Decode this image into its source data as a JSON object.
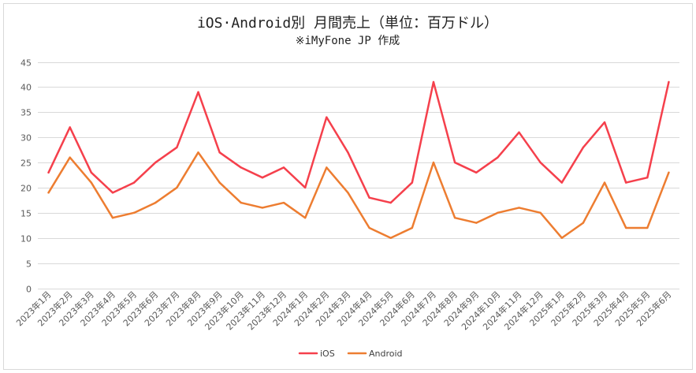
{
  "chart_data": {
    "type": "line",
    "title": "iOS·Android別 月間売上（単位：百万ドル）",
    "subtitle": "※iMyFone JP 作成",
    "xlabel": "",
    "ylabel": "",
    "ylim": [
      0,
      45
    ],
    "yticks": [
      0,
      5,
      10,
      15,
      20,
      25,
      30,
      35,
      40,
      45
    ],
    "grid": true,
    "legend_position": "bottom",
    "categories": [
      "2023年1月",
      "2023年2月",
      "2023年3月",
      "2023年4月",
      "2023年5月",
      "2023年6月",
      "2023年7月",
      "2023年8月",
      "2023年9月",
      "2023年10月",
      "2023年11月",
      "2023年12月",
      "2024年1月",
      "2024年2月",
      "2024年3月",
      "2024年4月",
      "2024年5月",
      "2024年6月",
      "2024年7月",
      "2024年8月",
      "2024年9月",
      "2024年10月",
      "2024年11月",
      "2024年12月",
      "2025年1月",
      "2025年2月",
      "2025年3月",
      "2025年4月",
      "2025年5月",
      "2025年6月"
    ],
    "series": [
      {
        "name": "iOS",
        "color": "#F5404C",
        "values": [
          23,
          32,
          23,
          19,
          21,
          25,
          28,
          39,
          27,
          24,
          22,
          24,
          20,
          34,
          27,
          18,
          17,
          21,
          41,
          25,
          23,
          26,
          31,
          25,
          21,
          28,
          33,
          21,
          22,
          41
        ]
      },
      {
        "name": "Android",
        "color": "#ED7D31",
        "values": [
          19,
          26,
          21,
          14,
          15,
          17,
          20,
          27,
          21,
          17,
          16,
          17,
          14,
          24,
          19,
          12,
          10,
          12,
          25,
          14,
          13,
          15,
          16,
          15,
          10,
          13,
          21,
          12,
          12,
          23
        ]
      }
    ]
  }
}
